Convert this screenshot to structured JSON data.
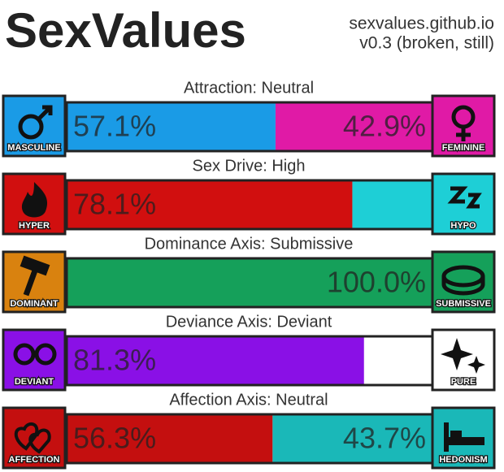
{
  "header": {
    "title": "SexValues",
    "site": "sexvalues.github.io",
    "version": "v0.3 (broken, still)"
  },
  "chart_data": [
    {
      "type": "bar",
      "title": "Attraction: Neutral",
      "categories": [
        "MASCULINE",
        "FEMININE"
      ],
      "values": [
        57.1,
        42.9
      ],
      "value_labels": [
        "57.1%",
        "42.9%"
      ],
      "colors": [
        "#1a9be6",
        "#e01aa6"
      ],
      "xlim": [
        0,
        100
      ]
    },
    {
      "type": "bar",
      "title": "Sex Drive: High",
      "categories": [
        "HYPER",
        "HYPO"
      ],
      "values": [
        78.1,
        21.9
      ],
      "value_labels": [
        "78.1%",
        null
      ],
      "colors": [
        "#d10f0f",
        "#1ecfd6"
      ],
      "xlim": [
        0,
        100
      ]
    },
    {
      "type": "bar",
      "title": "Dominance Axis: Submissive",
      "categories": [
        "DOMINANT",
        "SUBMISSIVE"
      ],
      "values": [
        0,
        100
      ],
      "value_labels": [
        null,
        "100.0%"
      ],
      "colors": [
        "#d9820f",
        "#15a05a"
      ],
      "xlim": [
        0,
        100
      ]
    },
    {
      "type": "bar",
      "title": "Deviance Axis: Deviant",
      "categories": [
        "DEVIANT",
        "PURE"
      ],
      "values": [
        81.3,
        18.7
      ],
      "value_labels": [
        "81.3%",
        null
      ],
      "colors": [
        "#8a10e6",
        "#ffffff"
      ],
      "xlim": [
        0,
        100
      ]
    },
    {
      "type": "bar",
      "title": "Affection Axis: Neutral",
      "categories": [
        "AFFECTION",
        "HEDONISM"
      ],
      "values": [
        56.3,
        43.7
      ],
      "value_labels": [
        "56.3%",
        "43.7%"
      ],
      "colors": [
        "#c40f0f",
        "#1ab8b8"
      ],
      "xlim": [
        0,
        100
      ]
    }
  ]
}
